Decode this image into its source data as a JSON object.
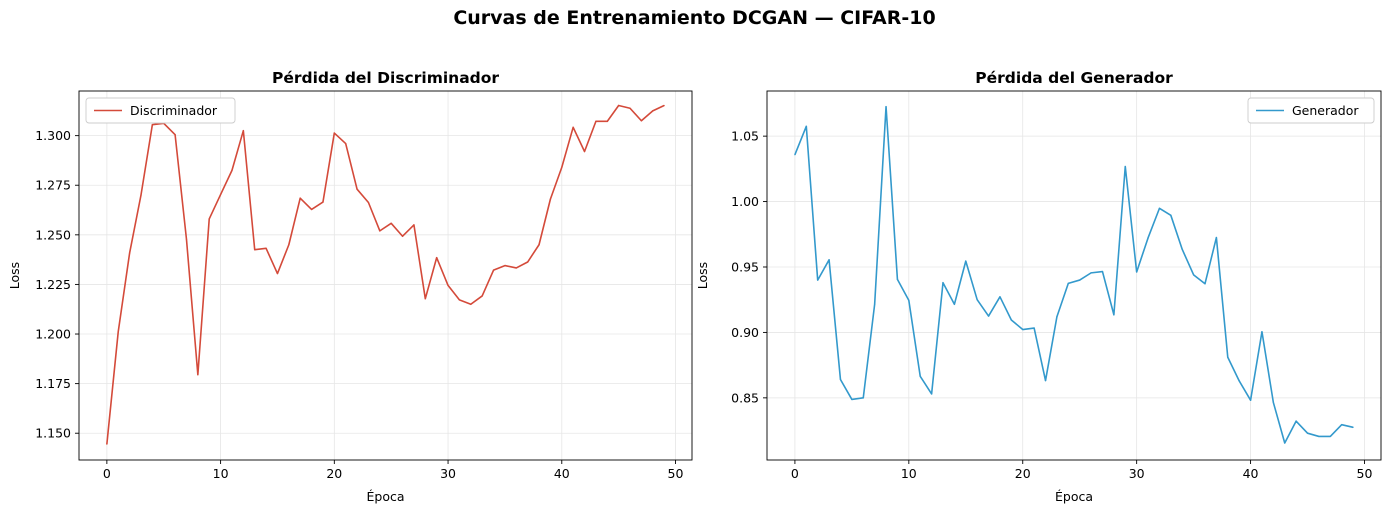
{
  "figure": {
    "suptitle": "Curvas de Entrenamiento DCGAN — CIFAR-10"
  },
  "chart_data": [
    {
      "type": "line",
      "title": "Pérdida del Discriminador",
      "xlabel": "Época",
      "ylabel": "Loss",
      "xlim": [
        -2.45,
        51.45
      ],
      "ylim": [
        1.1365,
        1.3225
      ],
      "xticks": [
        0,
        10,
        20,
        30,
        40,
        50
      ],
      "xtick_labels": [
        "0",
        "10",
        "20",
        "30",
        "40",
        "50"
      ],
      "yticks": [
        1.15,
        1.175,
        1.2,
        1.225,
        1.25,
        1.275,
        1.3
      ],
      "ytick_labels": [
        "1.150",
        "1.175",
        "1.200",
        "1.225",
        "1.250",
        "1.275",
        "1.300"
      ],
      "grid": true,
      "legend": "upper-left",
      "color": "#d44a3a",
      "series": [
        {
          "name": "Discriminador",
          "x": [
            0,
            1,
            2,
            3,
            4,
            5,
            6,
            7,
            8,
            9,
            10,
            11,
            12,
            13,
            14,
            15,
            16,
            17,
            18,
            19,
            20,
            21,
            22,
            23,
            24,
            25,
            26,
            27,
            28,
            29,
            30,
            31,
            32,
            33,
            34,
            35,
            36,
            37,
            38,
            39,
            40,
            41,
            42,
            43,
            44,
            45,
            46,
            47,
            48,
            49
          ],
          "y": [
            1.1445,
            1.2012,
            1.2408,
            1.27,
            1.3055,
            1.3062,
            1.3005,
            1.2478,
            1.1795,
            1.258,
            1.2703,
            1.2825,
            1.3025,
            1.2425,
            1.2432,
            1.2305,
            1.245,
            1.2685,
            1.2628,
            1.2665,
            1.3013,
            1.296,
            1.273,
            1.2663,
            1.252,
            1.2558,
            1.2493,
            1.255,
            1.2178,
            1.2385,
            1.2245,
            1.2172,
            1.215,
            1.2192,
            1.2322,
            1.2345,
            1.2333,
            1.2363,
            1.245,
            1.268,
            1.284,
            1.3042,
            1.292,
            1.3072,
            1.3072,
            1.3152,
            1.3138,
            1.3075,
            1.3125,
            1.3152
          ]
        }
      ]
    },
    {
      "type": "line",
      "title": "Pérdida del Generador",
      "xlabel": "Época",
      "ylabel": "Loss",
      "xlim": [
        -2.45,
        51.45
      ],
      "ylim": [
        0.8025,
        1.0845
      ],
      "xticks": [
        0,
        10,
        20,
        30,
        40,
        50
      ],
      "xtick_labels": [
        "0",
        "10",
        "20",
        "30",
        "40",
        "50"
      ],
      "yticks": [
        0.85,
        0.9,
        0.95,
        1.0,
        1.05
      ],
      "ytick_labels": [
        "0.85",
        "0.90",
        "0.95",
        "1.00",
        "1.05"
      ],
      "grid": true,
      "legend": "upper-right",
      "color": "#3399cc",
      "series": [
        {
          "name": "Generador",
          "x": [
            0,
            1,
            2,
            3,
            4,
            5,
            6,
            7,
            8,
            9,
            10,
            11,
            12,
            13,
            14,
            15,
            16,
            17,
            18,
            19,
            20,
            21,
            22,
            23,
            24,
            25,
            26,
            27,
            28,
            29,
            30,
            31,
            32,
            33,
            34,
            35,
            36,
            37,
            38,
            39,
            40,
            41,
            42,
            43,
            44,
            45,
            46,
            47,
            48,
            49
          ],
          "y": [
            1.0358,
            1.0575,
            0.94,
            0.9555,
            0.864,
            0.8488,
            0.85,
            0.9215,
            1.0725,
            0.9405,
            0.9245,
            0.8665,
            0.853,
            0.938,
            0.9215,
            0.9545,
            0.925,
            0.9125,
            0.9272,
            0.9095,
            0.9022,
            0.9033,
            0.8632,
            0.912,
            0.9375,
            0.94,
            0.9455,
            0.9465,
            0.9135,
            1.0268,
            0.9462,
            0.9722,
            0.9948,
            0.9895,
            0.9635,
            0.944,
            0.9372,
            0.9725,
            0.881,
            0.863,
            0.8482,
            0.9005,
            0.8465,
            0.8155,
            0.8322,
            0.823,
            0.8205,
            0.8205,
            0.8295,
            0.8275
          ]
        }
      ]
    }
  ]
}
